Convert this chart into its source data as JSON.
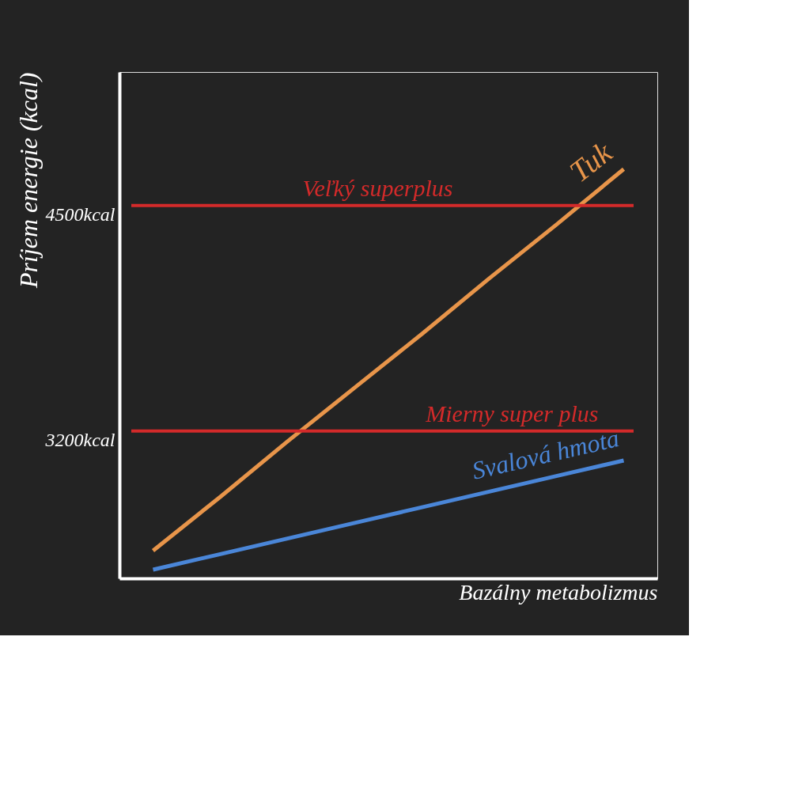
{
  "chart_data": {
    "type": "line",
    "xlabel": "Bazálny metabolizmus",
    "ylabel": "Príjem energie (kcal)",
    "categories": [
      null,
      null,
      null,
      null,
      null,
      null,
      null,
      null
    ],
    "series": [
      {
        "name": "Tuk",
        "color": "#e8954a",
        "values": [
          2510,
          2820,
          3140,
          3450,
          3760,
          4080,
          4390,
          4710
        ]
      },
      {
        "name": "Svalová hmota",
        "color": "#4a86d8",
        "values": [
          2400,
          2490,
          2580,
          2670,
          2760,
          2850,
          2940,
          3030
        ]
      }
    ],
    "ylim": [
      2350,
      5270
    ],
    "yticks": [
      {
        "value": 3200,
        "label": "3200kcal"
      },
      {
        "value": 4500,
        "label": "4500kcal"
      }
    ],
    "ref_lines": [
      {
        "axis": "y",
        "value": 4500,
        "label": "Veľký superplus",
        "color": "#d42a2a"
      },
      {
        "axis": "y",
        "value": 3200,
        "label": "Mierny super plus",
        "color": "#d42a2a"
      }
    ],
    "tick_labels": "y",
    "grid": false,
    "legend": false,
    "marker": "none",
    "line_style": "solid"
  }
}
